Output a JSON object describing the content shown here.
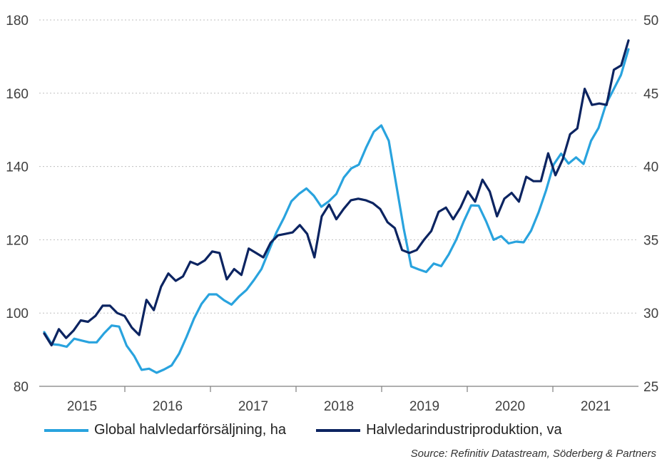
{
  "chart_data": {
    "type": "line",
    "x_labels": [
      "2015",
      "2016",
      "2017",
      "2018",
      "2019",
      "2020",
      "2021"
    ],
    "y_left": {
      "ylim": [
        80,
        180
      ],
      "ticks": [
        80,
        100,
        120,
        140,
        160,
        180
      ]
    },
    "y_right": {
      "ylim": [
        25,
        50
      ],
      "ticks": [
        25,
        30,
        35,
        40,
        45,
        50
      ]
    },
    "grid": true,
    "legend_position": "bottom",
    "series": [
      {
        "name": "Global halvledarförsäljning, ha",
        "axis": "left",
        "color": "#29a3de",
        "values": [
          94.8,
          91.5,
          91.3,
          90.8,
          93.0,
          92.5,
          92.0,
          92.0,
          94.5,
          96.6,
          96.3,
          91.1,
          88.3,
          84.5,
          84.8,
          83.7,
          84.6,
          85.7,
          88.9,
          93.5,
          98.5,
          102.5,
          105.1,
          105.1,
          103.5,
          102.3,
          104.5,
          106.3,
          109.0,
          112.0,
          117.0,
          122.0,
          126.0,
          130.5,
          132.5,
          134.0,
          132.0,
          129.0,
          130.5,
          132.5,
          137.0,
          139.5,
          140.5,
          145.3,
          149.5,
          151.2,
          147.0,
          135.0,
          123.0,
          112.7,
          111.9,
          111.2,
          113.5,
          112.8,
          116.0,
          120.0,
          125.0,
          129.4,
          129.3,
          125.0,
          120.0,
          121.0,
          119.0,
          119.5,
          119.3,
          122.5,
          127.5,
          133.5,
          140.5,
          143.5,
          140.8,
          142.5,
          140.7,
          147.0,
          150.5,
          157.0,
          161.0,
          165.0,
          172.0
        ]
      },
      {
        "name": "Halvledarindustriproduktion, va",
        "axis": "right",
        "color": "#0c2461",
        "values": [
          28.6,
          27.8,
          28.9,
          28.3,
          28.8,
          29.5,
          29.4,
          29.8,
          30.5,
          30.5,
          30.0,
          29.8,
          29.0,
          28.5,
          30.9,
          30.2,
          31.8,
          32.7,
          32.2,
          32.5,
          33.5,
          33.3,
          33.6,
          34.2,
          34.1,
          32.3,
          33.0,
          32.6,
          34.4,
          34.1,
          33.8,
          34.8,
          35.3,
          35.4,
          35.5,
          36.0,
          35.4,
          33.8,
          36.6,
          37.4,
          36.4,
          37.1,
          37.7,
          37.8,
          37.7,
          37.5,
          37.1,
          36.2,
          35.8,
          34.3,
          34.1,
          34.3,
          35.0,
          35.6,
          36.9,
          37.2,
          36.4,
          37.2,
          38.3,
          37.6,
          39.1,
          38.3,
          36.6,
          37.8,
          38.2,
          37.6,
          39.3,
          39.0,
          39.0,
          40.9,
          39.4,
          40.5,
          42.2,
          42.6,
          45.3,
          44.2,
          44.3,
          44.2,
          46.6,
          46.9,
          48.6
        ]
      }
    ]
  },
  "legend": {
    "items": [
      {
        "label": "Global halvledarförsäljning, ha",
        "color": "#29a3de"
      },
      {
        "label": "Halvledarindustriproduktion, va",
        "color": "#0c2461"
      }
    ]
  },
  "source": "Source: Refinitiv Datastream, Söderberg & Partners"
}
